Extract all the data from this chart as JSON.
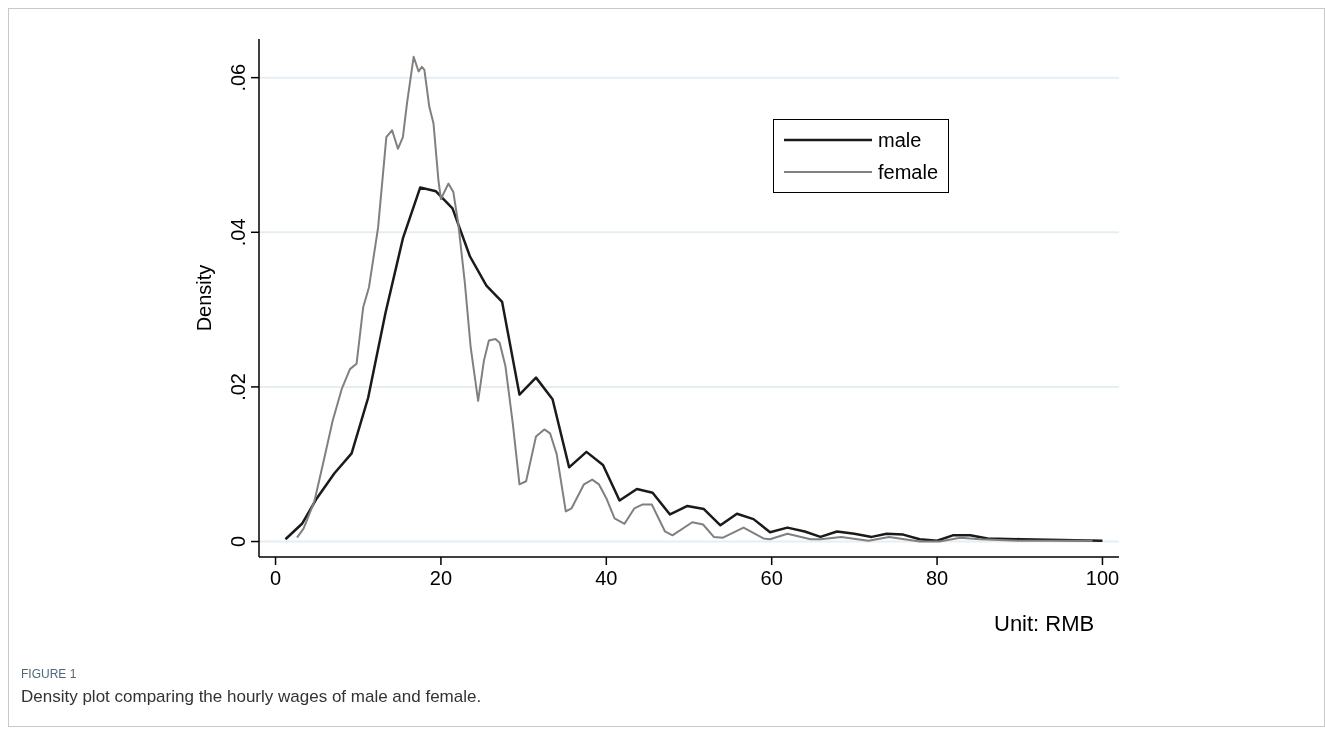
{
  "chart_data": {
    "type": "line",
    "xlabel": "Unit: RMB",
    "ylabel": "Density",
    "annotations": [
      "FIGURE 1",
      "Density plot comparing the hourly wages of male and female."
    ],
    "xlim": [
      -2,
      102
    ],
    "xticks": [
      0,
      20,
      40,
      60,
      80,
      100
    ],
    "ylim": [
      -0.002,
      0.065
    ],
    "yticks": [
      {
        "value": 0,
        "label": "0"
      },
      {
        "value": 0.02,
        "label": ".02"
      },
      {
        "value": 0.04,
        "label": ".04"
      },
      {
        "value": 0.06,
        "label": ".06"
      }
    ],
    "grid": "y",
    "legend": "top right",
    "marker": "none",
    "line_style": "solid",
    "series": [
      {
        "name": "male",
        "color": "#1a1a1a",
        "x": [
          1.2,
          3.2,
          5.0,
          7.1,
          9.2,
          11.2,
          13.3,
          15.4,
          17.5,
          19.4,
          21.4,
          23.5,
          25.5,
          27.4,
          29.5,
          31.5,
          33.5,
          35.5,
          37.6,
          39.6,
          41.6,
          43.7,
          45.6,
          47.7,
          49.8,
          51.8,
          53.8,
          55.8,
          57.8,
          59.8,
          61.9,
          64.0,
          65.9,
          67.9,
          70.0,
          72.1,
          73.9,
          75.9,
          77.9,
          80.0,
          81.9,
          84.0,
          86.1,
          90.2,
          100
        ],
        "values": [
          0.0003,
          0.0023,
          0.0056,
          0.0088,
          0.0114,
          0.0186,
          0.0296,
          0.0392,
          0.0458,
          0.0453,
          0.0431,
          0.0369,
          0.0331,
          0.031,
          0.019,
          0.0212,
          0.0184,
          0.0096,
          0.0116,
          0.0099,
          0.0053,
          0.0068,
          0.0063,
          0.0035,
          0.0046,
          0.0042,
          0.0021,
          0.0036,
          0.0029,
          0.0012,
          0.0018,
          0.0013,
          0.0006,
          0.0013,
          0.001,
          0.0006,
          0.001,
          0.0009,
          0.0003,
          0.0001,
          0.0008,
          0.0008,
          0.0004,
          0.0003,
          0.0001
        ]
      },
      {
        "name": "female",
        "color": "#808080",
        "x": [
          2.6,
          3.4,
          4.7,
          5.9,
          6.9,
          8.0,
          9.0,
          9.8,
          10.6,
          11.3,
          12.4,
          13.4,
          14.1,
          14.8,
          15.4,
          15.9,
          16.7,
          17.3,
          17.7,
          18.0,
          18.6,
          19.1,
          19.7,
          20.0,
          20.9,
          21.5,
          22.1,
          22.9,
          23.6,
          24.5,
          25.2,
          25.8,
          26.6,
          27.1,
          27.8,
          28.7,
          29.5,
          30.3,
          31.5,
          32.5,
          33.2,
          34.0,
          35.1,
          35.8,
          37.3,
          38.3,
          39.1,
          40.0,
          41.0,
          42.2,
          43.4,
          44.4,
          45.5,
          47.1,
          48.0,
          50.4,
          51.7,
          53.0,
          54.1,
          56.6,
          59.0,
          59.8,
          61.9,
          64.7,
          65.9,
          68.4,
          71.7,
          74.2,
          77.9,
          80.3,
          82.8,
          85.2,
          89.8,
          98.8
        ],
        "values": [
          0.0005,
          0.0017,
          0.0052,
          0.0108,
          0.0156,
          0.0197,
          0.0223,
          0.023,
          0.0303,
          0.0329,
          0.0406,
          0.0523,
          0.0532,
          0.0508,
          0.0523,
          0.0567,
          0.0627,
          0.0608,
          0.0614,
          0.061,
          0.0562,
          0.0541,
          0.0467,
          0.0443,
          0.0463,
          0.0452,
          0.0411,
          0.0334,
          0.0251,
          0.0182,
          0.0234,
          0.026,
          0.0262,
          0.0257,
          0.0227,
          0.0152,
          0.0074,
          0.0078,
          0.0136,
          0.0145,
          0.014,
          0.0113,
          0.0039,
          0.0043,
          0.0074,
          0.008,
          0.0074,
          0.0056,
          0.003,
          0.0023,
          0.0043,
          0.0048,
          0.0048,
          0.0013,
          0.0008,
          0.0025,
          0.0022,
          0.0006,
          0.0005,
          0.0018,
          0.0004,
          0.0003,
          0.001,
          0.0003,
          0.0003,
          0.0006,
          0.0001,
          0.0006,
          0,
          0,
          0.0005,
          0.0003,
          0.0001,
          0.0001
        ]
      }
    ]
  }
}
